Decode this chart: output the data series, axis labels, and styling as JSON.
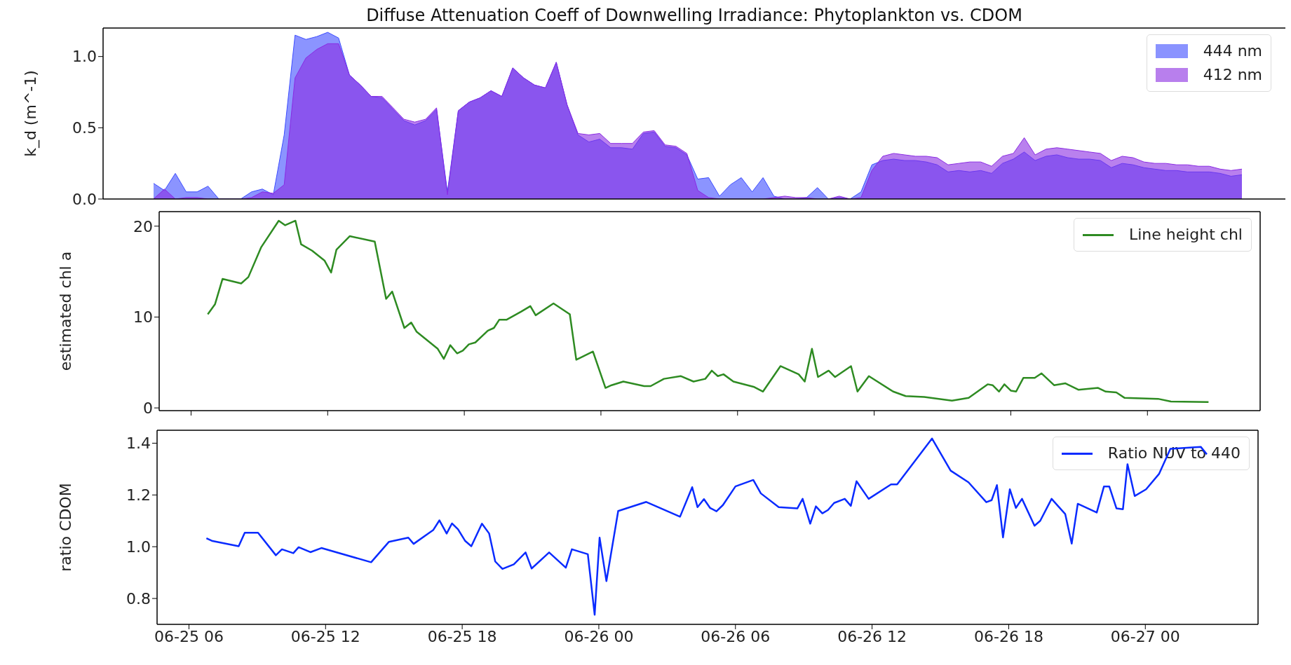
{
  "chart_data": [
    {
      "type": "area",
      "title": "Diffuse Attenuation Coeff of Downwelling Irradiance: Phytoplankton vs. CDOM",
      "ylabel": "k_d (m^-1)",
      "categories": [
        null,
        null,
        null,
        null,
        null,
        null,
        null,
        null,
        null,
        null,
        null,
        null,
        null,
        null,
        null,
        null,
        null,
        null,
        null,
        null,
        null,
        null,
        null,
        null,
        null,
        null,
        null,
        null,
        null,
        null,
        null,
        null,
        null,
        null,
        null,
        null,
        null,
        null,
        null,
        null,
        null,
        null,
        null,
        null,
        null,
        null,
        null,
        null,
        null,
        null,
        null,
        null,
        null,
        null,
        null,
        null,
        null,
        null,
        null,
        null,
        null,
        null,
        null,
        null,
        null,
        null,
        null,
        null,
        null,
        null,
        null,
        null,
        null,
        null,
        null,
        null,
        null,
        null,
        null,
        null,
        null,
        null,
        null,
        null,
        null,
        null,
        null,
        null,
        null,
        null,
        null,
        null,
        null,
        null,
        null,
        null,
        null,
        null,
        null,
        null,
        null
      ],
      "ylim": [
        0,
        1.2
      ],
      "yticks": [
        {
          "value": 0,
          "label": "0.0"
        },
        {
          "value": 0.5,
          "label": "0.5"
        },
        {
          "value": 1,
          "label": "1.0"
        }
      ],
      "legend": "top right",
      "tick_labels": "y",
      "series": [
        {
          "name": "444 nm",
          "color": "#3d4dff",
          "values": [
            0.11,
            0.06,
            0.18,
            0.05,
            0.05,
            0.09,
            0,
            0,
            0,
            0.05,
            0.07,
            0.03,
            0.45,
            1.15,
            1.12,
            1.14,
            1.17,
            1.13,
            0.87,
            0.8,
            0.72,
            0.71,
            0.63,
            0.55,
            0.52,
            0.55,
            0.63,
            0.05,
            0.62,
            0.68,
            0.71,
            0.76,
            0.72,
            0.92,
            0.85,
            0.8,
            0.78,
            0.96,
            0.66,
            0.45,
            0.4,
            0.42,
            0.36,
            0.36,
            0.35,
            0.46,
            0.47,
            0.37,
            0.36,
            0.31,
            0.14,
            0.15,
            0.02,
            0.1,
            0.15,
            0.05,
            0.15,
            0.02,
            0,
            0,
            0.01,
            0.08,
            0,
            0.01,
            0,
            0.05,
            0.24,
            0.27,
            0.28,
            0.27,
            0.27,
            0.26,
            0.24,
            0.19,
            0.2,
            0.19,
            0.2,
            0.18,
            0.25,
            0.28,
            0.33,
            0.27,
            0.3,
            0.31,
            0.29,
            0.28,
            0.28,
            0.27,
            0.22,
            0.25,
            0.24,
            0.22,
            0.21,
            0.2,
            0.2,
            0.19,
            0.19,
            0.19,
            0.18,
            0.16,
            0.17
          ]
        },
        {
          "name": "412 nm",
          "color": "#8a2be2",
          "values": [
            0,
            0.07,
            0,
            0.01,
            0.01,
            0,
            0,
            0,
            0,
            0.01,
            0.05,
            0.04,
            0.1,
            0.85,
            0.99,
            1.05,
            1.09,
            1.09,
            0.87,
            0.8,
            0.72,
            0.72,
            0.64,
            0.56,
            0.54,
            0.56,
            0.64,
            0.03,
            0.62,
            0.68,
            0.71,
            0.76,
            0.72,
            0.92,
            0.85,
            0.8,
            0.78,
            0.96,
            0.66,
            0.46,
            0.45,
            0.46,
            0.39,
            0.39,
            0.39,
            0.47,
            0.48,
            0.38,
            0.37,
            0.32,
            0.06,
            0.01,
            0,
            0,
            0,
            0,
            0,
            0.01,
            0.02,
            0.01,
            0.01,
            0,
            0,
            0.02,
            0,
            0.01,
            0.2,
            0.3,
            0.32,
            0.31,
            0.3,
            0.3,
            0.29,
            0.24,
            0.25,
            0.26,
            0.26,
            0.23,
            0.3,
            0.32,
            0.43,
            0.31,
            0.35,
            0.36,
            0.35,
            0.34,
            0.33,
            0.32,
            0.27,
            0.3,
            0.29,
            0.26,
            0.25,
            0.25,
            0.24,
            0.24,
            0.23,
            0.23,
            0.21,
            0.2,
            0.21
          ]
        }
      ]
    },
    {
      "type": "line",
      "ylabel": "estimated chl a",
      "xlim": [
        "--06-25T04:36",
        "--06-27T04:57"
      ],
      "xticks": [
        {
          "value": "--06-25T06:00",
          "label": null
        },
        {
          "value": "--06-25T12:00",
          "label": null
        },
        {
          "value": "--06-25T18:00",
          "label": null
        },
        {
          "value": "--06-26T00:00",
          "label": null
        },
        {
          "value": "--06-26T06:00",
          "label": null
        },
        {
          "value": "--06-26T12:00",
          "label": null
        },
        {
          "value": "--06-26T18:00",
          "label": null
        },
        {
          "value": "--06-27T00:00",
          "label": null
        }
      ],
      "ylim": [
        -0.3,
        21.6
      ],
      "yticks": [
        0,
        10,
        20
      ],
      "legend": "top right",
      "tick_labels": "y",
      "x": [
        "--06-25T06:44",
        "--06-25T07:03",
        "--06-25T07:23",
        "--06-25T08:12",
        "--06-25T08:31",
        "--06-25T09:05",
        "--06-25T09:51",
        "--06-25T10:08",
        "--06-25T10:35",
        "--06-25T10:50",
        "--06-25T11:19",
        "--06-25T11:52",
        "--06-25T12:09",
        "--06-25T12:23",
        "--06-25T12:58",
        "--06-25T14:04",
        "--06-25T14:34",
        "--06-25T14:50",
        "--06-25T15:22",
        "--06-25T15:40",
        "--06-25T15:54",
        "--06-25T16:50",
        "--06-25T17:06",
        "--06-25T17:23",
        "--06-25T17:41",
        "--06-25T17:56",
        "--06-25T18:12",
        "--06-25T18:29",
        "--06-25T19:02",
        "--06-25T19:18",
        "--06-25T19:32",
        "--06-25T19:51",
        "--06-25T20:30",
        "--06-25T20:54",
        "--06-25T21:08",
        "--06-25T21:55",
        "--06-25T22:38",
        "--06-25T22:55",
        "--06-25T23:39",
        "--06-26T00:12",
        "--06-26T00:28",
        "--06-26T00:59",
        "--06-26T01:54",
        "--06-26T02:11",
        "--06-26T02:46",
        "--06-26T03:30",
        "--06-26T04:04",
        "--06-26T04:35",
        "--06-26T04:52",
        "--06-26T05:08",
        "--06-26T05:23",
        "--06-26T05:49",
        "--06-26T06:44",
        "--06-26T07:07",
        "--06-26T07:53",
        "--06-26T08:41",
        "--06-26T08:57",
        "--06-26T09:16",
        "--06-26T09:32",
        "--06-26T10:00",
        "--06-26T10:17",
        "--06-26T10:59",
        "--06-26T11:16",
        "--06-26T11:46",
        "--06-26T12:50",
        "--06-26T13:23",
        "--06-26T14:12",
        "--06-26T15:25",
        "--06-26T16:09",
        "--06-26T16:59",
        "--06-26T17:12",
        "--06-26T17:29",
        "--06-26T17:43",
        "--06-26T18:00",
        "--06-26T18:14",
        "--06-26T18:33",
        "--06-26T19:03",
        "--06-26T19:21",
        "--06-26T19:54",
        "--06-26T20:24",
        "--06-26T20:58",
        "--06-26T21:50",
        "--06-26T22:10",
        "--06-26T22:38",
        "--06-26T23:00",
        "--06-27T00:28",
        "--06-27T01:02",
        "--06-27T02:41"
      ],
      "series": [
        {
          "name": "Line height chl",
          "color": "#2e8b22",
          "values": [
            10.3,
            11.4,
            14.2,
            13.7,
            14.4,
            17.7,
            20.6,
            20.1,
            20.6,
            18.0,
            17.3,
            16.2,
            14.9,
            17.4,
            18.9,
            18.3,
            12.0,
            12.8,
            8.8,
            9.4,
            8.4,
            6.5,
            5.4,
            6.9,
            6.0,
            6.3,
            7.0,
            7.2,
            8.5,
            8.8,
            9.7,
            9.7,
            10.6,
            11.2,
            10.2,
            11.5,
            10.3,
            5.3,
            6.2,
            2.2,
            2.5,
            2.9,
            2.4,
            2.4,
            3.2,
            3.5,
            2.9,
            3.2,
            4.1,
            3.5,
            3.7,
            2.9,
            2.3,
            1.8,
            4.6,
            3.7,
            2.9,
            6.5,
            3.4,
            4.1,
            3.4,
            4.6,
            1.8,
            3.5,
            1.8,
            1.3,
            1.2,
            0.8,
            1.1,
            2.6,
            2.5,
            1.8,
            2.6,
            1.9,
            1.8,
            3.3,
            3.3,
            3.8,
            2.5,
            2.7,
            2.0,
            2.2,
            1.8,
            1.7,
            1.1,
            1.0,
            0.7,
            0.65
          ]
        }
      ]
    },
    {
      "type": "line",
      "ylabel": "ratio CDOM",
      "xlim": [
        "--06-25T04:36",
        "--06-27T04:57"
      ],
      "xticks": [
        {
          "value": "--06-25T06:00",
          "label": "06-25 06"
        },
        {
          "value": "--06-25T12:00",
          "label": "06-25 12"
        },
        {
          "value": "--06-25T18:00",
          "label": "06-25 18"
        },
        {
          "value": "--06-26T00:00",
          "label": "06-26 00"
        },
        {
          "value": "--06-26T06:00",
          "label": "06-26 06"
        },
        {
          "value": "--06-26T12:00",
          "label": "06-26 12"
        },
        {
          "value": "--06-26T18:00",
          "label": "06-26 18"
        },
        {
          "value": "--06-27T00:00",
          "label": "06-27 00"
        }
      ],
      "ylim": [
        0.7,
        1.45
      ],
      "yticks": [
        {
          "value": 0.8,
          "label": "0.8"
        },
        {
          "value": 1,
          "label": "1.0"
        },
        {
          "value": 1.2,
          "label": "1.2"
        },
        {
          "value": 1.4,
          "label": "1.4"
        }
      ],
      "legend": "top right",
      "x": [
        "--06-25T06:46",
        "--06-25T07:02",
        "--06-25T08:11",
        "--06-25T08:27",
        "--06-25T09:02",
        "--06-25T09:49",
        "--06-25T10:05",
        "--06-25T10:35",
        "--06-25T10:49",
        "--06-25T11:20",
        "--06-25T11:49",
        "--06-25T14:00",
        "--06-25T14:47",
        "--06-25T15:38",
        "--06-25T15:52",
        "--06-25T16:44",
        "--06-25T17:00",
        "--06-25T17:19",
        "--06-25T17:33",
        "--06-25T17:49",
        "--06-25T18:08",
        "--06-25T18:24",
        "--06-25T18:52",
        "--06-25T19:11",
        "--06-25T19:27",
        "--06-25T19:46",
        "--06-25T20:16",
        "--06-25T20:47",
        "--06-25T21:03",
        "--06-25T21:49",
        "--06-25T22:33",
        "--06-25T22:49",
        "--06-25T23:31",
        "--06-25T23:49",
        "--06-26T00:02",
        "--06-26T00:20",
        "--06-26T00:51",
        "--06-26T02:05",
        "--06-26T03:34",
        "--06-26T04:06",
        "--06-26T04:20",
        "--06-26T04:37",
        "--06-26T04:53",
        "--06-26T05:10",
        "--06-26T05:27",
        "--06-26T06:00",
        "--06-26T06:47",
        "--06-26T07:07",
        "--06-26T07:54",
        "--06-26T08:43",
        "--06-26T08:57",
        "--06-26T09:17",
        "--06-26T09:32",
        "--06-26T09:49",
        "--06-26T10:04",
        "--06-26T10:20",
        "--06-26T10:48",
        "--06-26T11:04",
        "--06-26T11:19",
        "--06-26T11:51",
        "--06-26T12:50",
        "--06-26T13:06",
        "--06-26T14:38",
        "--06-26T15:27",
        "--06-26T16:14",
        "--06-26T17:01",
        "--06-26T17:15",
        "--06-26T17:29",
        "--06-26T17:45",
        "--06-26T18:03",
        "--06-26T18:19",
        "--06-26T18:35",
        "--06-26T19:08",
        "--06-26T19:23",
        "--06-26T19:53",
        "--06-26T20:29",
        "--06-26T20:46",
        "--06-26T21:02",
        "--06-26T21:52",
        "--06-26T22:11",
        "--06-26T22:25",
        "--06-26T22:44",
        "--06-26T23:01",
        "--06-26T23:13",
        "--06-26T23:32",
        "--06-27T00:02",
        "--06-27T00:36",
        "--06-27T01:06",
        "--06-27T02:26",
        "--06-27T02:42"
      ],
      "series": [
        {
          "name": "Ratio NUV to 440",
          "color": "#0a2bff",
          "values": [
            1.033,
            1.022,
            1.002,
            1.054,
            1.054,
            0.967,
            0.99,
            0.975,
            0.998,
            0.979,
            0.995,
            0.94,
            1.019,
            1.035,
            1.011,
            1.065,
            1.102,
            1.051,
            1.09,
            1.067,
            1.022,
            1.002,
            1.089,
            1.051,
            0.943,
            0.914,
            0.932,
            0.978,
            0.916,
            0.978,
            0.919,
            0.99,
            0.971,
            0.737,
            1.035,
            0.867,
            1.138,
            1.173,
            1.116,
            1.23,
            1.153,
            1.184,
            1.15,
            1.137,
            1.161,
            1.233,
            1.258,
            1.206,
            1.153,
            1.148,
            1.185,
            1.089,
            1.156,
            1.129,
            1.142,
            1.169,
            1.185,
            1.158,
            1.253,
            1.185,
            1.241,
            1.241,
            1.418,
            1.294,
            1.249,
            1.172,
            1.18,
            1.238,
            1.036,
            1.222,
            1.15,
            1.185,
            1.081,
            1.1,
            1.185,
            1.126,
            1.012,
            1.166,
            1.132,
            1.233,
            1.233,
            1.148,
            1.145,
            1.319,
            1.196,
            1.222,
            1.281,
            1.378,
            1.386,
            1.357
          ]
        }
      ]
    }
  ]
}
